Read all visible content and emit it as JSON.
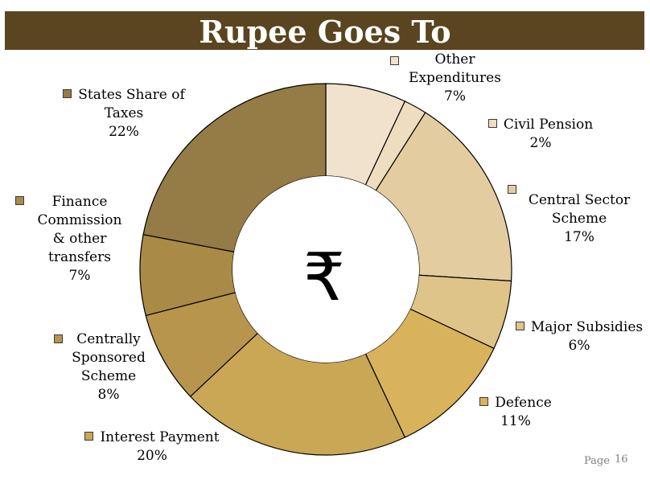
{
  "title": "Rupee Goes To",
  "center_symbol": "₹",
  "page": {
    "word": "Page",
    "number": "16"
  },
  "chart_data": {
    "type": "pie",
    "title": "Rupee Goes To",
    "start_angle_deg": 0,
    "direction": "clockwise",
    "slices": [
      {
        "label": "Other Expenditures",
        "value": 7,
        "display": "7%",
        "color": "#f0e2cd"
      },
      {
        "label": "Civil Pension",
        "value": 2,
        "display": "2%",
        "color": "#eedebf"
      },
      {
        "label": "Central Sector Scheme",
        "value": 17,
        "display": "17%",
        "color": "#e3cda0"
      },
      {
        "label": "Major Subsidies",
        "value": 6,
        "display": "6%",
        "color": "#dfc489"
      },
      {
        "label": "Defence",
        "value": 11,
        "display": "11%",
        "color": "#d8b35b"
      },
      {
        "label": "Interest Payment",
        "value": 20,
        "display": "20%",
        "color": "#c9a755"
      },
      {
        "label": "Centrally Sponsored Scheme",
        "value": 8,
        "display": "8%",
        "color": "#b8954d"
      },
      {
        "label": "Finance Commission & other transfers",
        "value": 7,
        "display": "7%",
        "color": "#a98a47"
      },
      {
        "label": "States Share of Taxes",
        "value": 22,
        "display": "22%",
        "color": "#957b45"
      }
    ]
  },
  "labels": {
    "other": {
      "line1": "Other",
      "line2": "Expenditures",
      "pct": "7%"
    },
    "civil": {
      "line1": "Civil Pension",
      "pct": "2%"
    },
    "central": {
      "line1": "Central Sector",
      "line2": "Scheme",
      "pct": "17%"
    },
    "subsidies": {
      "line1": "Major Subsidies",
      "pct": "6%"
    },
    "defence": {
      "line1": "Defence",
      "pct": "11%"
    },
    "interest": {
      "line1": "Interest Payment",
      "pct": "20%"
    },
    "css": {
      "line1": "Centrally",
      "line2": "Sponsored",
      "line3": "Scheme",
      "pct": "8%"
    },
    "finance": {
      "line1": "Finance",
      "line2": "Commission",
      "line3": "& other",
      "line4": "transfers",
      "pct": "7%"
    },
    "states": {
      "line1": "States Share of",
      "line2": "Taxes",
      "pct": "22%"
    }
  }
}
